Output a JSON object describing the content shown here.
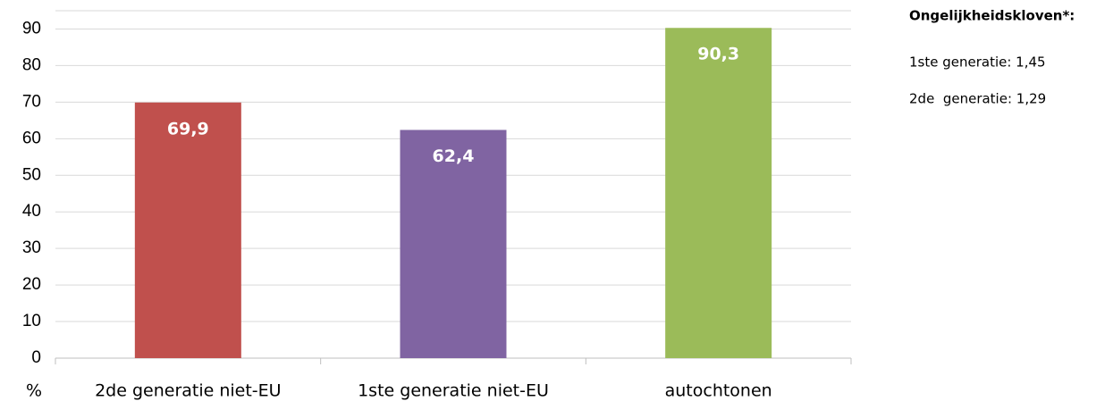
{
  "chart_data": {
    "type": "bar",
    "categories": [
      "2de generatie niet-EU",
      "1ste generatie niet-EU",
      "autochtonen"
    ],
    "values": [
      69.9,
      62.4,
      90.3
    ],
    "value_labels": [
      "69,9",
      "62,4",
      "90,3"
    ],
    "colors": [
      "#c0504d",
      "#8064a2",
      "#9bbb59"
    ],
    "y_label": "%",
    "ylim": [
      0,
      95
    ],
    "yticks": [
      0,
      10,
      20,
      30,
      40,
      50,
      60,
      70,
      80,
      90
    ],
    "grid": true,
    "annotation": {
      "title": "Ongelijkheidskloven*:",
      "lines": [
        "1ste generatie: 1,45",
        "2de  generatie: 1,29"
      ]
    }
  }
}
